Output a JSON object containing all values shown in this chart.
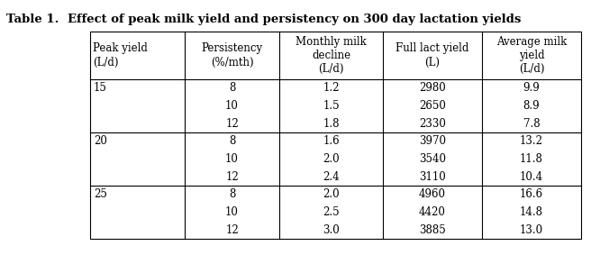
{
  "title": "Table 1.",
  "subtitle": "Effect of peak milk yield and persistency on 300 day lactation yields",
  "col_headers": [
    "Peak yield\n(L/d)",
    "Persistency\n(%/mth)",
    "Monthly milk\ndecline\n(L/d)",
    "Full lact yield\n(L)",
    "Average milk\nyield\n(L/d)"
  ],
  "rows": [
    [
      "15",
      "8",
      "1.2",
      "2980",
      "9.9"
    ],
    [
      "",
      "10",
      "1.5",
      "2650",
      "8.9"
    ],
    [
      "",
      "12",
      "1.8",
      "2330",
      "7.8"
    ],
    [
      "20",
      "8",
      "1.6",
      "3970",
      "13.2"
    ],
    [
      "",
      "10",
      "2.0",
      "3540",
      "11.8"
    ],
    [
      "",
      "12",
      "2.4",
      "3110",
      "10.4"
    ],
    [
      "25",
      "8",
      "2.0",
      "4960",
      "16.6"
    ],
    [
      "",
      "10",
      "2.5",
      "4420",
      "14.8"
    ],
    [
      "",
      "12",
      "3.0",
      "3885",
      "13.0"
    ]
  ],
  "col_aligns": [
    "left",
    "center",
    "center",
    "center",
    "center"
  ],
  "background_color": "#ffffff",
  "font_size": 8.5,
  "title_font_size": 9.5
}
